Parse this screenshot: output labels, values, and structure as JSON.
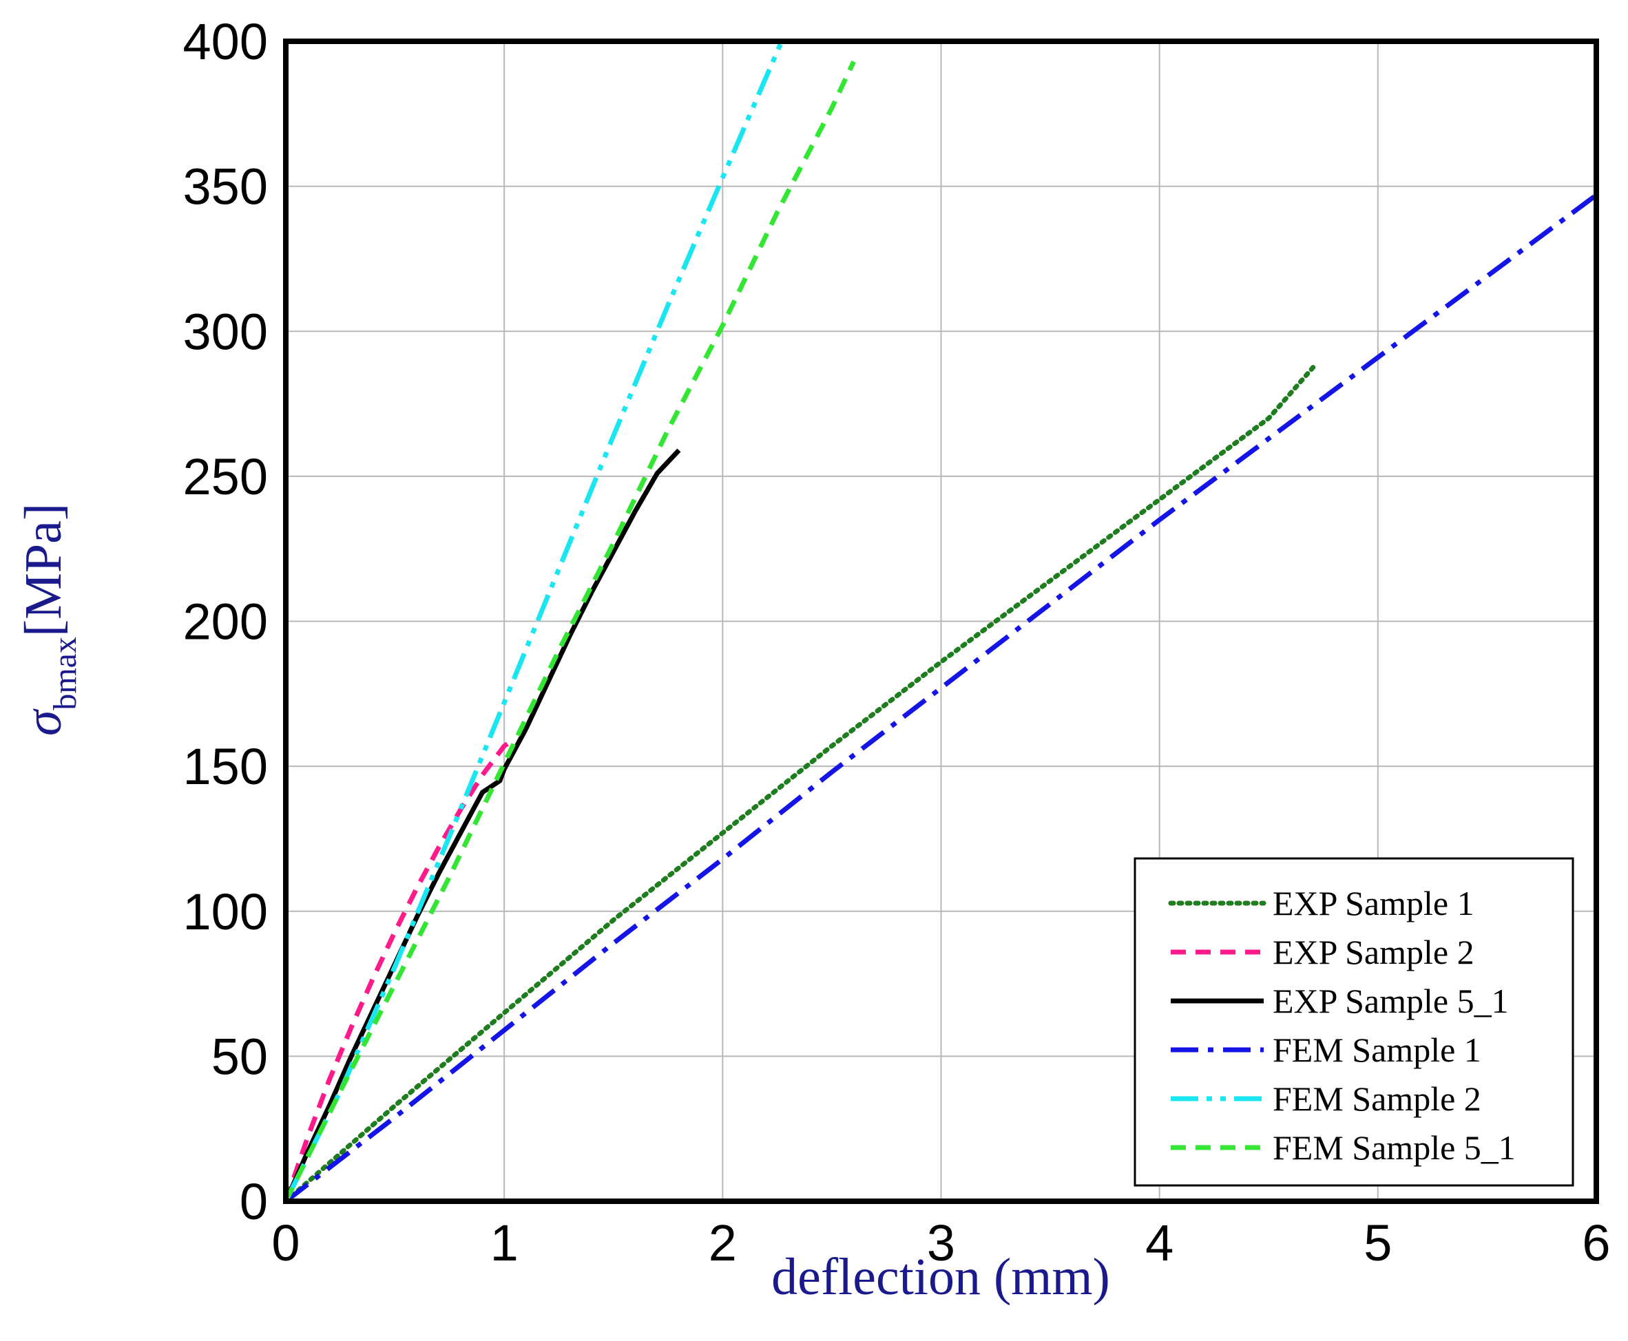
{
  "chart_data": {
    "type": "line",
    "title": "",
    "xlabel": "deflection (mm)",
    "ylabel": {
      "symbol": "σ",
      "subscript": "bmax",
      "unit": "[MPa]"
    },
    "xlim": [
      0,
      6
    ],
    "ylim": [
      0,
      400
    ],
    "grid": true,
    "x_ticks": [
      "0",
      "1",
      "2",
      "3",
      "4",
      "5",
      "6"
    ],
    "y_ticks": [
      "0",
      "50",
      "100",
      "150",
      "200",
      "250",
      "300",
      "350",
      "400"
    ],
    "legend_position": "bottom-right",
    "axis_title_color": "#1a1a8c",
    "series": [
      {
        "name": "EXP Sample 1",
        "color": "#1e7d1e",
        "style": "dotted",
        "x": [
          0,
          0.5,
          1.0,
          1.5,
          2.0,
          2.5,
          3.0,
          3.5,
          4.0,
          4.5,
          4.72
        ],
        "y": [
          0,
          33,
          65,
          97,
          127,
          157,
          186,
          214,
          242,
          270,
          289
        ]
      },
      {
        "name": "EXP Sample 2",
        "color": "#ff1a8c",
        "style": "dashed",
        "x": [
          0,
          0.1,
          0.2,
          0.3,
          0.4,
          0.5,
          0.6,
          0.7,
          0.8,
          0.9,
          1.0,
          1.02
        ],
        "y": [
          0,
          22,
          42,
          60,
          77,
          93,
          108,
          122,
          135,
          147,
          157,
          158
        ]
      },
      {
        "name": "EXP Sample 5_1",
        "color": "#000000",
        "style": "solid",
        "x": [
          0,
          0.1,
          0.2,
          0.3,
          0.4,
          0.5,
          0.6,
          0.7,
          0.8,
          0.9,
          0.98,
          1.0,
          1.1,
          1.2,
          1.3,
          1.4,
          1.5,
          1.6,
          1.7,
          1.8
        ],
        "y": [
          0,
          17,
          33,
          50,
          66,
          82,
          98,
          113,
          127,
          141,
          145,
          149,
          163,
          179,
          195,
          210,
          224,
          238,
          251,
          259
        ]
      },
      {
        "name": "FEM Sample 1",
        "color": "#1414e6",
        "style": "dash-dot",
        "x": [
          0,
          0.5,
          1.0,
          1.5,
          2.0,
          2.5,
          3.0,
          3.5,
          4.0,
          4.5,
          5.0,
          5.5,
          6.0
        ],
        "y": [
          0,
          29,
          59,
          89,
          118,
          148,
          177,
          206,
          235,
          263,
          291,
          319,
          347
        ]
      },
      {
        "name": "FEM Sample 2",
        "color": "#19e6f0",
        "style": "dash-dot-dot",
        "x": [
          0,
          0.25,
          0.5,
          0.75,
          1.0,
          1.25,
          1.5,
          1.75,
          2.0,
          2.27
        ],
        "y": [
          0,
          38,
          81,
          126,
          172,
          218,
          264,
          309,
          353,
          400
        ]
      },
      {
        "name": "FEM Sample 5_1",
        "color": "#33e633",
        "style": "dashed",
        "x": [
          0,
          0.25,
          0.5,
          0.75,
          1.0,
          1.25,
          1.5,
          1.75,
          2.0,
          2.25,
          2.5,
          2.6
        ],
        "y": [
          0,
          38,
          75,
          112,
          151,
          190,
          227,
          266,
          302,
          341,
          377,
          393
        ]
      }
    ]
  }
}
